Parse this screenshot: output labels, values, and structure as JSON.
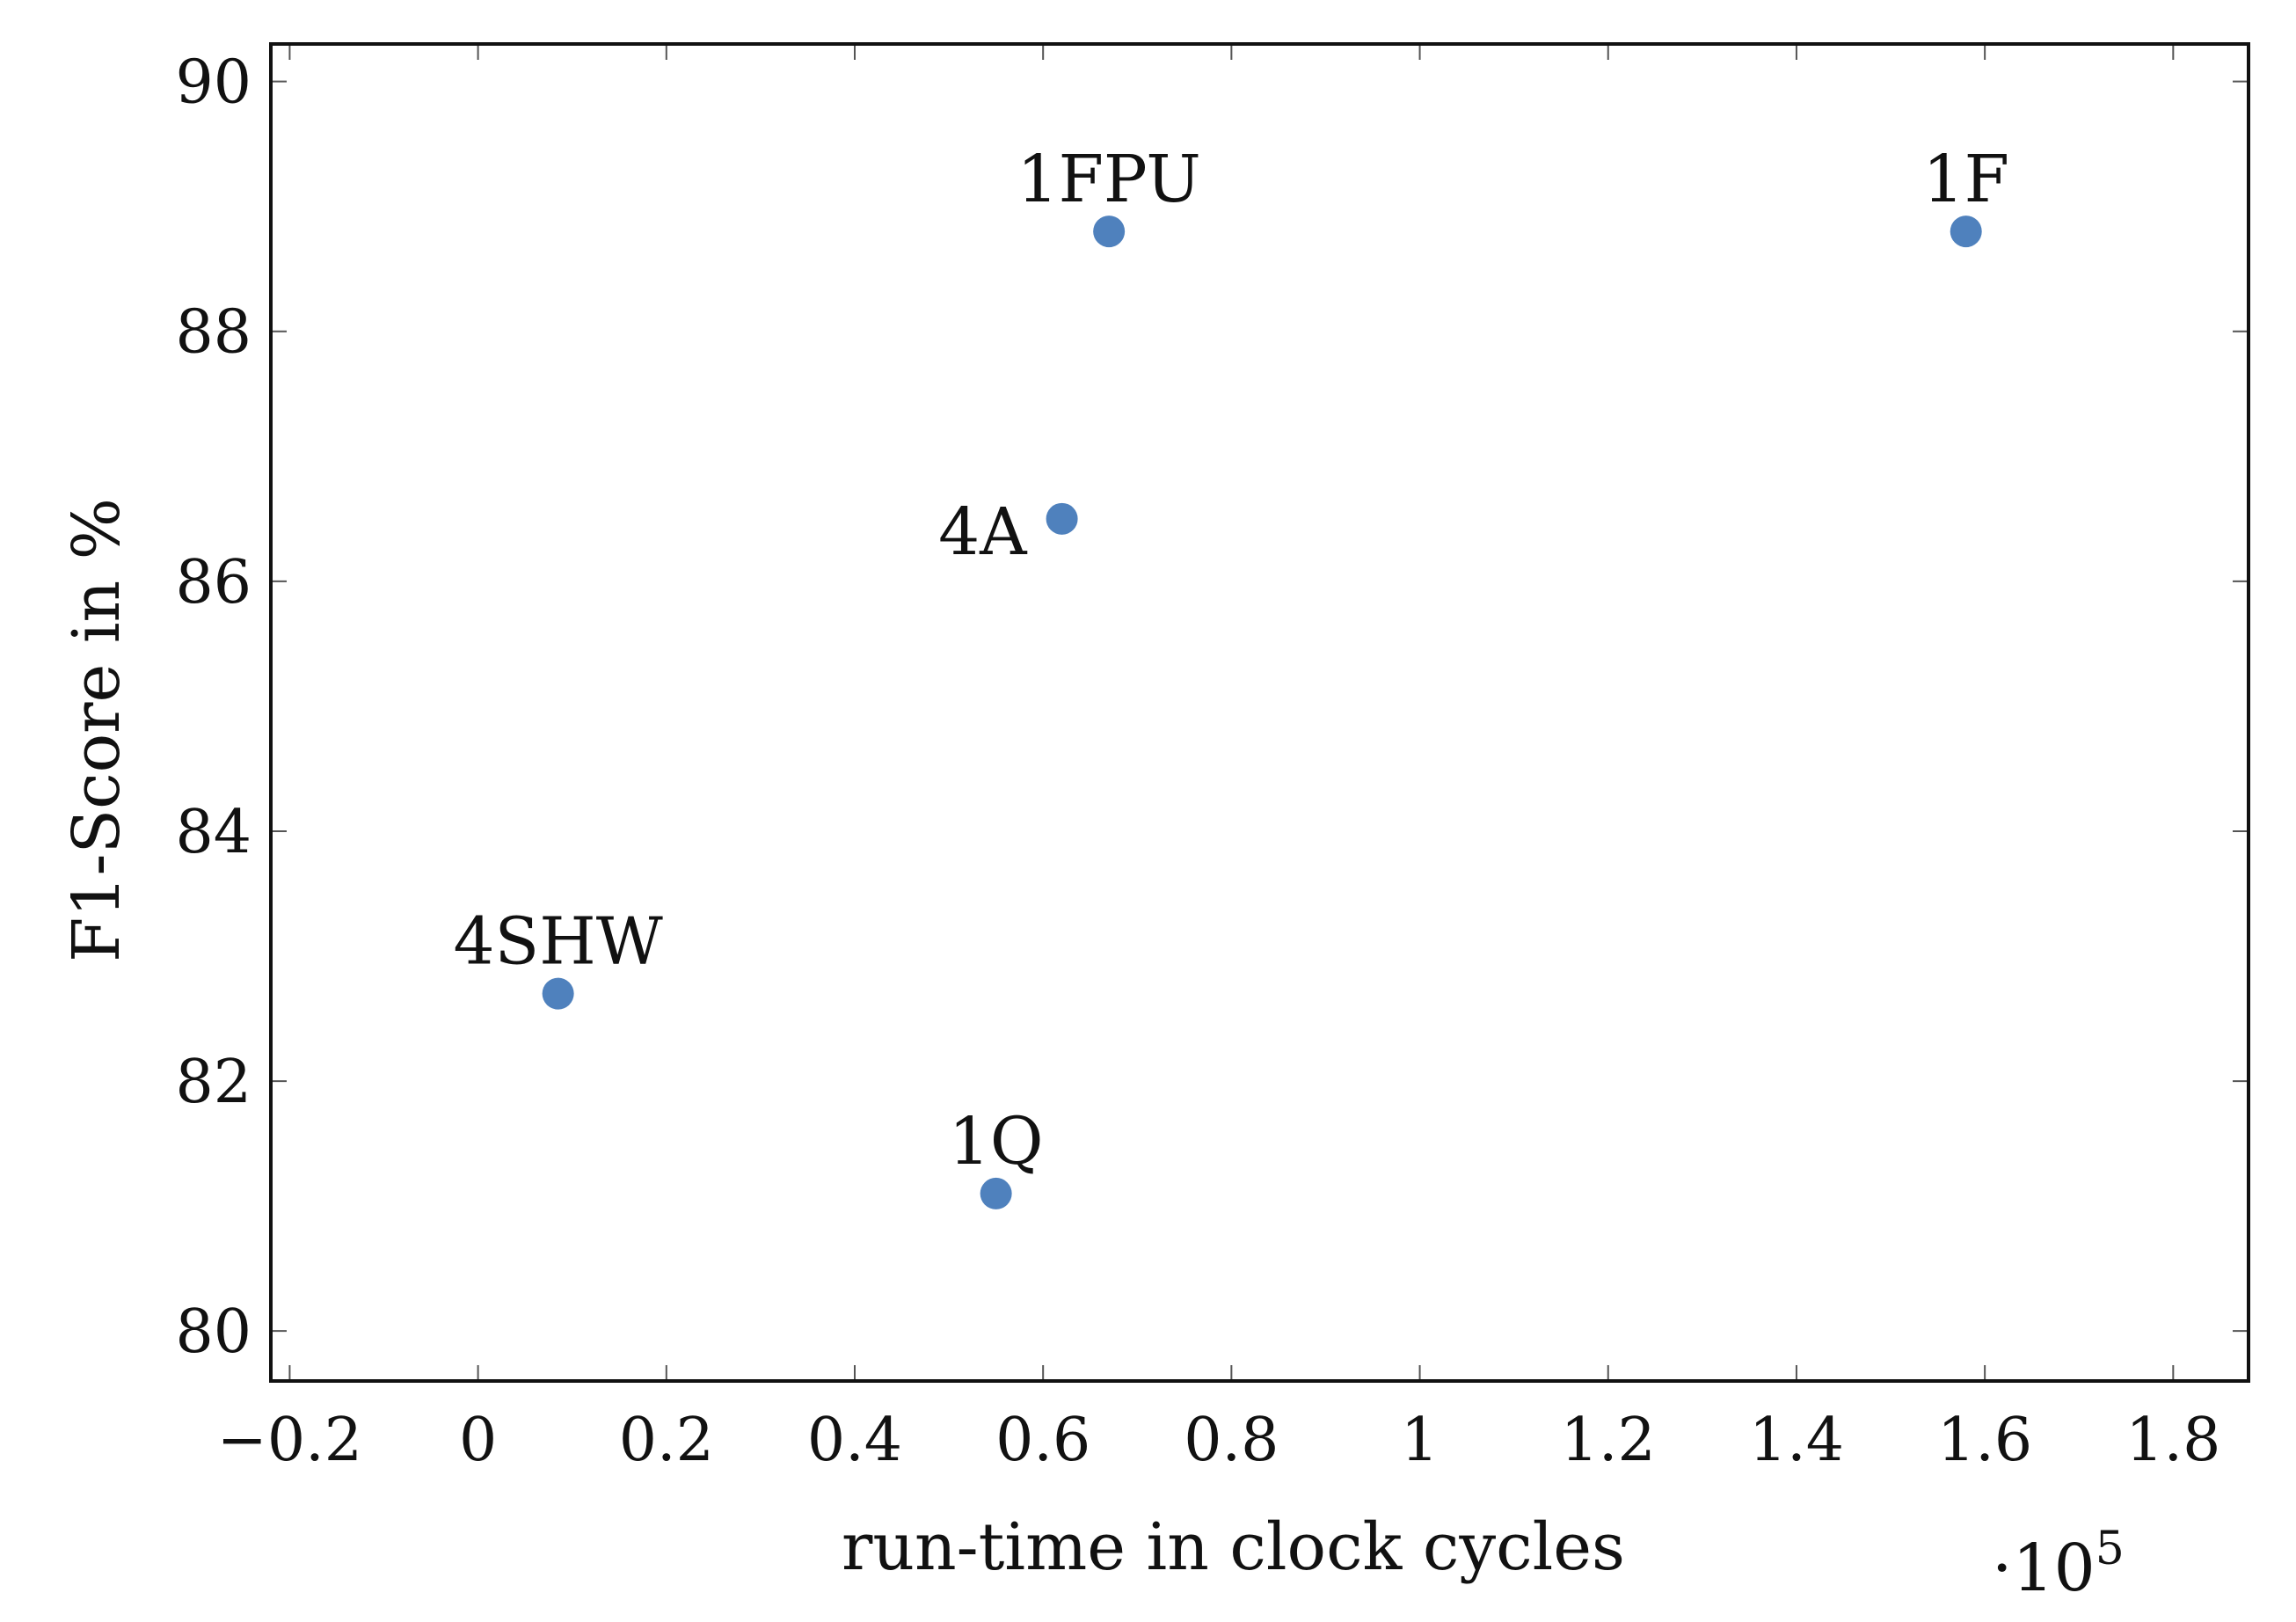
{
  "chart_data": {
    "type": "scatter",
    "title": "",
    "xlabel": "run-time in clock cycles",
    "ylabel": "F1-Score in %",
    "x_scale_label": "·10",
    "x_scale_exponent": "5",
    "xlim": [
      -0.22,
      1.88
    ],
    "ylim": [
      79.6,
      90.3
    ],
    "x_ticks": [
      -0.2,
      0,
      0.2,
      0.4,
      0.6,
      0.8,
      1,
      1.2,
      1.4,
      1.6,
      1.8
    ],
    "x_tick_labels": [
      "−0.2",
      "0",
      "0.2",
      "0.4",
      "0.6",
      "0.8",
      "1",
      "1.2",
      "1.4",
      "1.6",
      "1.8"
    ],
    "y_ticks": [
      80,
      82,
      84,
      86,
      88,
      90
    ],
    "y_tick_labels": [
      "80",
      "82",
      "84",
      "86",
      "88",
      "90"
    ],
    "grid": false,
    "marker_color": "#4f81bd",
    "points": [
      {
        "label": "1FPU",
        "x": 0.67,
        "y": 88.8,
        "label_pos": "above"
      },
      {
        "label": "1F",
        "x": 1.58,
        "y": 88.8,
        "label_pos": "above"
      },
      {
        "label": "4A",
        "x": 0.62,
        "y": 86.5,
        "label_pos": "left"
      },
      {
        "label": "4SHW",
        "x": 0.085,
        "y": 82.7,
        "label_pos": "above"
      },
      {
        "label": "1Q",
        "x": 0.55,
        "y": 81.1,
        "label_pos": "above"
      }
    ]
  }
}
